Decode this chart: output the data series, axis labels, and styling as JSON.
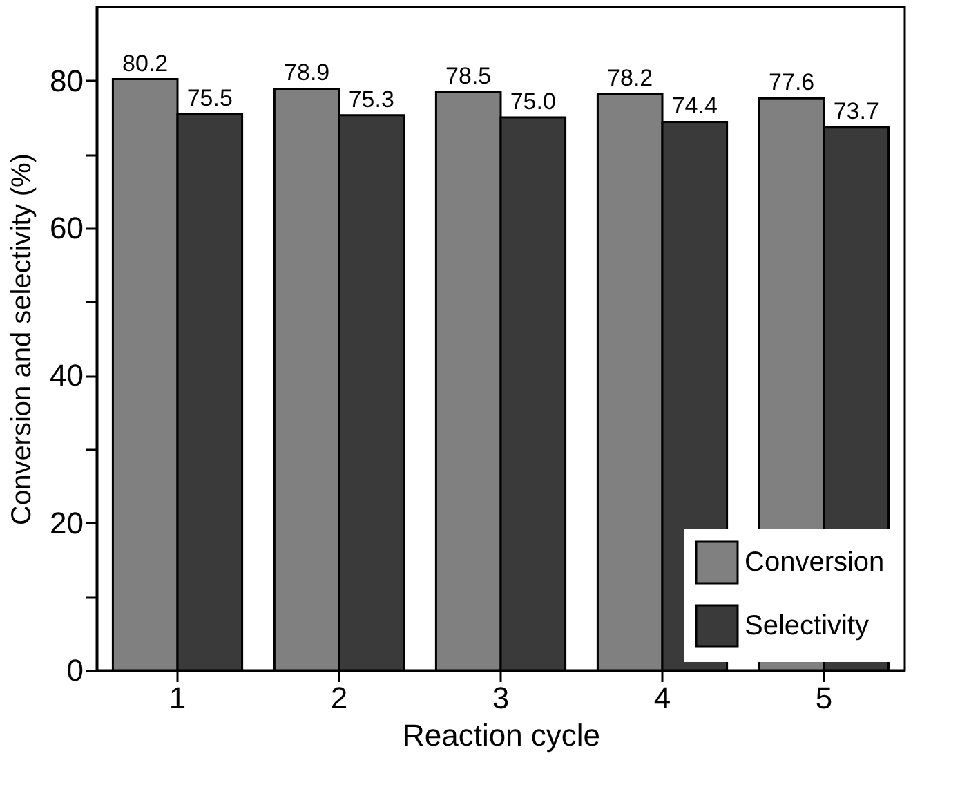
{
  "chart_data": {
    "type": "bar",
    "xlabel": "Reaction cycle",
    "ylabel": "Conversion and selectivity (%)",
    "categories": [
      "1",
      "2",
      "3",
      "4",
      "5"
    ],
    "series": [
      {
        "name": "Conversion",
        "color": "#808080",
        "values": [
          80.2,
          78.9,
          78.5,
          78.2,
          77.6
        ],
        "value_labels": [
          "80.2",
          "78.9",
          "78.5",
          "78.2",
          "77.6"
        ]
      },
      {
        "name": "Selectivity",
        "color": "#3a3a3a",
        "values": [
          75.5,
          75.3,
          75.0,
          74.4,
          73.7
        ],
        "value_labels": [
          "75.5",
          "75.3",
          "75.0",
          "74.4",
          "73.7"
        ]
      }
    ],
    "ylim": [
      0,
      90
    ],
    "yticks": [
      0,
      {
        "value": 10,
        "label": null
      },
      20,
      {
        "value": 30,
        "label": null
      },
      40,
      {
        "value": 50,
        "label": null
      },
      60,
      {
        "value": 70,
        "label": null
      },
      80
    ],
    "grid": false,
    "legend": "bottom right"
  }
}
